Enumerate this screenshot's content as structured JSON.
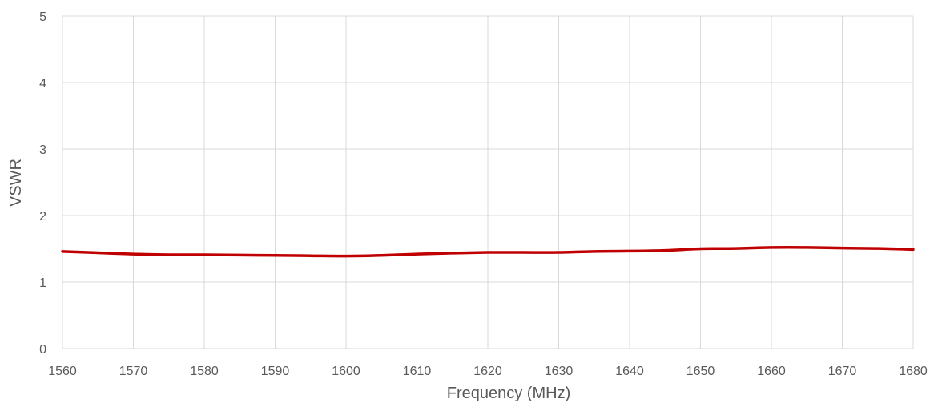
{
  "chart_data": {
    "type": "line",
    "title": "",
    "xlabel": "Frequency (MHz)",
    "ylabel": "VSWR",
    "xlim": [
      1560,
      1680
    ],
    "ylim": [
      0,
      5
    ],
    "x_ticks": [
      1560,
      1570,
      1580,
      1590,
      1600,
      1610,
      1620,
      1630,
      1640,
      1650,
      1660,
      1670,
      1680
    ],
    "y_ticks": [
      0,
      1,
      2,
      3,
      4,
      5
    ],
    "grid": true,
    "colors": {
      "series": "#c00000",
      "grid": "#d9d9d9",
      "text": "#595959"
    },
    "series": [
      {
        "x": [
          1560,
          1565,
          1570,
          1575,
          1580,
          1585,
          1590,
          1595,
          1600,
          1605,
          1610,
          1615,
          1620,
          1625,
          1630,
          1635,
          1640,
          1645,
          1650,
          1655,
          1660,
          1665,
          1670,
          1675,
          1680
        ],
        "values": [
          1.46,
          1.44,
          1.42,
          1.41,
          1.41,
          1.405,
          1.4,
          1.395,
          1.39,
          1.4,
          1.42,
          1.435,
          1.445,
          1.445,
          1.445,
          1.46,
          1.465,
          1.475,
          1.5,
          1.505,
          1.52,
          1.52,
          1.51,
          1.505,
          1.49
        ]
      }
    ]
  }
}
